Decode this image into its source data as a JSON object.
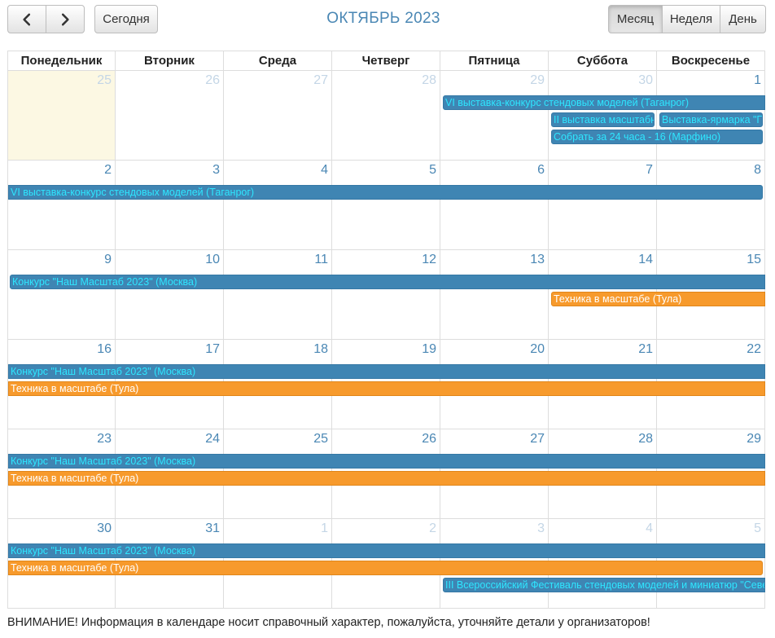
{
  "toolbar": {
    "prev_icon": "chevron-left-icon",
    "next_icon": "chevron-right-icon",
    "today_label": "Сегодня",
    "title": "ОКТЯБРЬ 2023",
    "views": [
      "Месяц",
      "Неделя",
      "День"
    ],
    "active_view": "Месяц"
  },
  "weekdays": [
    "Понедельник",
    "Вторник",
    "Среда",
    "Четверг",
    "Пятница",
    "Суббота",
    "Воскресенье"
  ],
  "weeks": [
    {
      "days": [
        {
          "num": "25",
          "other": true,
          "today": true
        },
        {
          "num": "26",
          "other": true
        },
        {
          "num": "27",
          "other": true
        },
        {
          "num": "28",
          "other": true
        },
        {
          "num": "29",
          "other": true
        },
        {
          "num": "30",
          "other": true
        },
        {
          "num": "1",
          "other": false
        }
      ],
      "events": [
        {
          "title": "VI выставка-конкурс стендовых моделей (Таганрог)",
          "color": "blue",
          "start": 4,
          "end": 6,
          "lane": 0,
          "startsHere": true,
          "endsHere": false
        },
        {
          "title": "II выставка масштабных моделей",
          "color": "blue",
          "start": 5,
          "end": 5,
          "lane": 1,
          "startsHere": true,
          "endsHere": true
        },
        {
          "title": "Выставка-ярмарка \"Гараж\"",
          "color": "blue",
          "start": 6,
          "end": 6,
          "lane": 1,
          "startsHere": true,
          "endsHere": true
        },
        {
          "title": "Собрать за 24 часа - 16 (Марфино)",
          "color": "blue",
          "start": 5,
          "end": 6,
          "lane": 2,
          "startsHere": true,
          "endsHere": true
        }
      ]
    },
    {
      "days": [
        {
          "num": "2"
        },
        {
          "num": "3"
        },
        {
          "num": "4"
        },
        {
          "num": "5"
        },
        {
          "num": "6"
        },
        {
          "num": "7"
        },
        {
          "num": "8"
        }
      ],
      "events": [
        {
          "title": "VI выставка-конкурс стендовых моделей (Таганрог)",
          "color": "blue",
          "start": 0,
          "end": 6,
          "lane": 0,
          "startsHere": false,
          "endsHere": true
        }
      ]
    },
    {
      "days": [
        {
          "num": "9"
        },
        {
          "num": "10"
        },
        {
          "num": "11"
        },
        {
          "num": "12"
        },
        {
          "num": "13"
        },
        {
          "num": "14"
        },
        {
          "num": "15"
        }
      ],
      "events": [
        {
          "title": "Конкурс \"Наш Масштаб 2023\" (Москва)",
          "color": "blue",
          "start": 0,
          "end": 6,
          "lane": 0,
          "startsHere": true,
          "endsHere": false
        },
        {
          "title": "Техника в масштабе (Тула)",
          "color": "orange",
          "start": 5,
          "end": 6,
          "lane": 1,
          "startsHere": true,
          "endsHere": false
        }
      ]
    },
    {
      "days": [
        {
          "num": "16"
        },
        {
          "num": "17"
        },
        {
          "num": "18"
        },
        {
          "num": "19"
        },
        {
          "num": "20"
        },
        {
          "num": "21"
        },
        {
          "num": "22"
        }
      ],
      "events": [
        {
          "title": "Конкурс \"Наш Масштаб 2023\" (Москва)",
          "color": "blue",
          "start": 0,
          "end": 6,
          "lane": 0,
          "startsHere": false,
          "endsHere": false
        },
        {
          "title": "Техника в масштабе (Тула)",
          "color": "orange",
          "start": 0,
          "end": 6,
          "lane": 1,
          "startsHere": false,
          "endsHere": false
        }
      ]
    },
    {
      "days": [
        {
          "num": "23"
        },
        {
          "num": "24"
        },
        {
          "num": "25"
        },
        {
          "num": "26"
        },
        {
          "num": "27"
        },
        {
          "num": "28"
        },
        {
          "num": "29"
        }
      ],
      "events": [
        {
          "title": "Конкурс \"Наш Масштаб 2023\" (Москва)",
          "color": "blue",
          "start": 0,
          "end": 6,
          "lane": 0,
          "startsHere": false,
          "endsHere": false
        },
        {
          "title": "Техника в масштабе (Тула)",
          "color": "orange",
          "start": 0,
          "end": 6,
          "lane": 1,
          "startsHere": false,
          "endsHere": false
        }
      ]
    },
    {
      "days": [
        {
          "num": "30"
        },
        {
          "num": "31"
        },
        {
          "num": "1",
          "other": true
        },
        {
          "num": "2",
          "other": true
        },
        {
          "num": "3",
          "other": true
        },
        {
          "num": "4",
          "other": true
        },
        {
          "num": "5",
          "other": true
        }
      ],
      "events": [
        {
          "title": "Конкурс \"Наш Масштаб 2023\" (Москва)",
          "color": "blue",
          "start": 0,
          "end": 6,
          "lane": 0,
          "startsHere": false,
          "endsHere": false
        },
        {
          "title": "Техника в масштабе (Тула)",
          "color": "orange",
          "start": 0,
          "end": 6,
          "lane": 1,
          "startsHere": false,
          "endsHere": true
        },
        {
          "title": "III Всероссийский Фестиваль стендовых моделей и миниатюр \"Север\"",
          "color": "blue",
          "start": 4,
          "end": 6,
          "lane": 2,
          "startsHere": true,
          "endsHere": false
        }
      ]
    }
  ],
  "notice": "ВНИМАНИЕ! Информация в календаре носит справочный характер, пожалуйста, уточняйте детали у организаторов!",
  "colors": {
    "accent": "#4a87b4",
    "event_blue": "#3f85b3",
    "event_text": "#2ee6ff",
    "event_orange": "#f79a2c",
    "today_bg": "#fcf8e3"
  }
}
